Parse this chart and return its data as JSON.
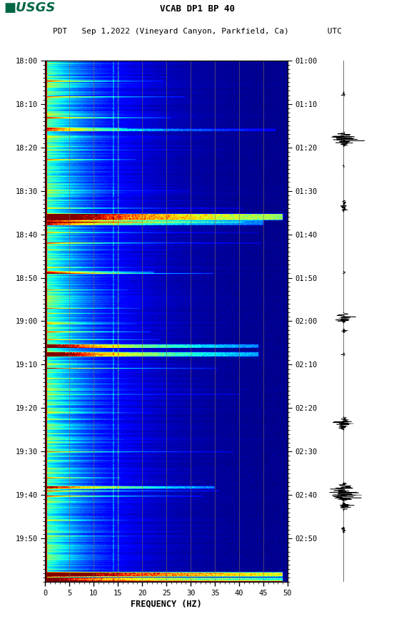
{
  "title_line1": "VCAB DP1 BP 40",
  "title_line2": "PDT   Sep 1,2022 (Vineyard Canyon, Parkfield, Ca)        UTC",
  "xlabel": "FREQUENCY (HZ)",
  "freq_min": 0,
  "freq_max": 50,
  "freq_ticks": [
    0,
    5,
    10,
    15,
    20,
    25,
    30,
    35,
    40,
    45,
    50
  ],
  "time_labels_left": [
    "18:00",
    "18:10",
    "18:20",
    "18:30",
    "18:40",
    "18:50",
    "19:00",
    "19:10",
    "19:20",
    "19:30",
    "19:40",
    "19:50"
  ],
  "time_labels_right": [
    "01:00",
    "01:10",
    "01:20",
    "01:30",
    "01:40",
    "01:50",
    "02:00",
    "02:10",
    "02:20",
    "02:30",
    "02:40",
    "02:50"
  ],
  "n_time_rows": 600,
  "n_freq_cols": 500,
  "bg_color": "white",
  "vertical_line_freqs": [
    5,
    10,
    15,
    20,
    25,
    30,
    35,
    40,
    45
  ],
  "vertical_line_color": "#8B7355",
  "fig_width": 5.52,
  "fig_height": 8.92,
  "dpi": 100,
  "usgs_green": "#006644"
}
